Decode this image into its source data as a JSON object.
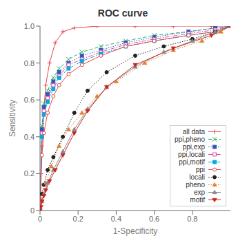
{
  "chart_data": {
    "type": "line",
    "title": "ROC curve",
    "x_label": "1-Specificity",
    "y_label": "Sensitivity",
    "xlim": [
      0,
      1
    ],
    "ylim": [
      0,
      1
    ],
    "xticks": [
      0,
      0.2,
      0.4,
      0.6,
      0.8
    ],
    "yticks": [
      0,
      0.2,
      0.4,
      0.6,
      0.8,
      {
        "value": 1,
        "label": "1.0"
      }
    ],
    "grid": false,
    "legend": "lower right",
    "series": [
      {
        "name": "all data",
        "color": "#e8474c",
        "line_style": "solid",
        "marker": "plus",
        "x": [
          0,
          0.005,
          0.01,
          0.02,
          0.03,
          0.05,
          0.08,
          0.12,
          0.18,
          0.3,
          0.5,
          0.7,
          0.9,
          1.0
        ],
        "values": [
          0,
          0.2,
          0.35,
          0.54,
          0.68,
          0.8,
          0.91,
          0.97,
          0.99,
          1.0,
          1.0,
          1.0,
          1.0,
          1.0
        ]
      },
      {
        "name": "ppi,pheno",
        "color": "#27ae60",
        "line_style": "dashed",
        "marker": "x",
        "x": [
          0,
          0.01,
          0.02,
          0.04,
          0.07,
          0.1,
          0.15,
          0.22,
          0.32,
          0.45,
          0.6,
          0.78,
          0.92,
          1.0
        ],
        "values": [
          0,
          0.46,
          0.58,
          0.65,
          0.72,
          0.77,
          0.82,
          0.86,
          0.89,
          0.92,
          0.95,
          0.97,
          0.99,
          1.0
        ]
      },
      {
        "name": "ppi,exp",
        "color": "#3355bb",
        "line_style": "dotted",
        "marker": "square",
        "x": [
          0,
          0.01,
          0.02,
          0.04,
          0.07,
          0.1,
          0.15,
          0.22,
          0.32,
          0.45,
          0.6,
          0.78,
          0.92,
          1.0
        ],
        "values": [
          0,
          0.44,
          0.56,
          0.63,
          0.7,
          0.75,
          0.8,
          0.84,
          0.87,
          0.91,
          0.94,
          0.97,
          0.99,
          1.0
        ]
      },
      {
        "name": "ppi,locali",
        "color": "#dd44aa",
        "line_style": "dashdot",
        "marker": "square_open",
        "x": [
          0,
          0.01,
          0.02,
          0.04,
          0.07,
          0.1,
          0.15,
          0.22,
          0.32,
          0.45,
          0.6,
          0.78,
          0.92,
          1.0
        ],
        "values": [
          0,
          0.42,
          0.54,
          0.61,
          0.68,
          0.73,
          0.79,
          0.82,
          0.86,
          0.9,
          0.93,
          0.96,
          0.98,
          1.0
        ]
      },
      {
        "name": "ppi,motif",
        "color": "#00aadd",
        "line_style": "dashdot",
        "marker": "square",
        "x": [
          0,
          0.01,
          0.02,
          0.04,
          0.07,
          0.1,
          0.15,
          0.22,
          0.32,
          0.45,
          0.6,
          0.78,
          0.92,
          1.0
        ],
        "values": [
          0,
          0.4,
          0.52,
          0.59,
          0.66,
          0.72,
          0.77,
          0.81,
          0.85,
          0.89,
          0.92,
          0.95,
          0.97,
          1.0
        ]
      },
      {
        "name": "ppi",
        "color": "#e8474c",
        "line_style": "solid",
        "marker": "circle_open",
        "x": [
          0,
          0.01,
          0.02,
          0.04,
          0.07,
          0.1,
          0.15,
          0.22,
          0.32,
          0.45,
          0.6,
          0.78,
          0.92,
          1.0
        ],
        "values": [
          0,
          0.3,
          0.42,
          0.53,
          0.62,
          0.68,
          0.74,
          0.79,
          0.84,
          0.89,
          0.92,
          0.95,
          0.97,
          1.0
        ]
      },
      {
        "name": "locali",
        "color": "#222222",
        "line_style": "dotted",
        "marker": "circle",
        "x": [
          0,
          0.01,
          0.02,
          0.04,
          0.07,
          0.12,
          0.18,
          0.25,
          0.35,
          0.5,
          0.65,
          0.8,
          0.92,
          1.0
        ],
        "values": [
          0,
          0.09,
          0.14,
          0.22,
          0.29,
          0.4,
          0.53,
          0.65,
          0.75,
          0.84,
          0.89,
          0.93,
          0.97,
          1.0
        ]
      },
      {
        "name": "pheno",
        "color": "#e08030",
        "line_style": "dotted",
        "marker": "triangle_up",
        "x": [
          0,
          0.01,
          0.03,
          0.06,
          0.1,
          0.15,
          0.22,
          0.3,
          0.4,
          0.55,
          0.7,
          0.85,
          0.95,
          1.0
        ],
        "values": [
          0,
          0.06,
          0.15,
          0.24,
          0.35,
          0.44,
          0.53,
          0.62,
          0.7,
          0.8,
          0.87,
          0.92,
          0.97,
          1.0
        ]
      },
      {
        "name": "exp",
        "color": "#888888",
        "line_style": "solid",
        "marker": "triangle_up",
        "x": [
          0,
          0.01,
          0.02,
          0.04,
          0.07,
          0.12,
          0.18,
          0.25,
          0.35,
          0.5,
          0.65,
          0.8,
          0.92,
          1.0
        ],
        "values": [
          0,
          0.05,
          0.09,
          0.15,
          0.22,
          0.32,
          0.44,
          0.55,
          0.67,
          0.78,
          0.86,
          0.92,
          0.97,
          1.0
        ]
      },
      {
        "name": "motif",
        "color": "#cc2222",
        "line_style": "solid",
        "marker": "triangle_down",
        "x": [
          0,
          0.005,
          0.01,
          0.02,
          0.03,
          0.05,
          0.08,
          0.12,
          0.18,
          0.25,
          0.35,
          0.5,
          0.7,
          0.9,
          1.0
        ],
        "values": [
          0,
          0.02,
          0.05,
          0.08,
          0.11,
          0.16,
          0.22,
          0.3,
          0.42,
          0.54,
          0.67,
          0.79,
          0.88,
          0.95,
          1.0
        ]
      }
    ]
  }
}
